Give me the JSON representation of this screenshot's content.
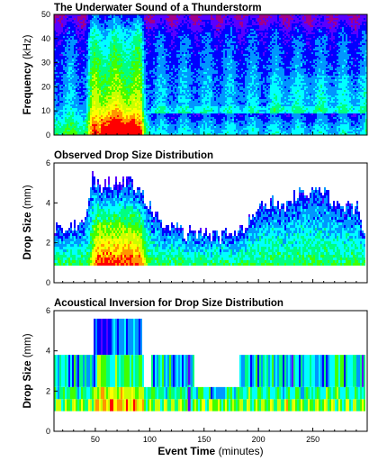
{
  "chart_data": [
    {
      "type": "heatmap",
      "title": "The Underwater Sound of a Thunderstorm",
      "ylabel": "Frequency",
      "yunit": "(kHz)",
      "xlim": [
        12,
        300
      ],
      "ylim": [
        0,
        50
      ],
      "yticks": [
        "0",
        "10",
        "20",
        "30",
        "40",
        "50"
      ],
      "xticks": [
        "",
        "",
        "",
        "",
        "",
        ""
      ],
      "events": [
        {
          "kind": "intense_rain",
          "x": [
            45,
            92
          ]
        },
        {
          "kind": "narrowband_lowfreq",
          "x": [
            100,
            300
          ],
          "y": [
            0,
            10
          ]
        }
      ]
    },
    {
      "type": "heatmap",
      "title": "Observed Drop Size Distribution",
      "ylabel": "Drop Size",
      "yunit": "(mm)",
      "xlim": [
        12,
        300
      ],
      "ylim": [
        0,
        6
      ],
      "yticks": [
        "0",
        "2",
        "4",
        "6"
      ],
      "xticks": [
        "",
        "",
        "",
        "",
        "",
        ""
      ],
      "upper_drop_size_envelope_mm": [
        [
          15,
          2.8
        ],
        [
          30,
          3.0
        ],
        [
          40,
          3.4
        ],
        [
          47,
          5.4
        ],
        [
          55,
          5.0
        ],
        [
          70,
          5.2
        ],
        [
          85,
          5.0
        ],
        [
          95,
          4.2
        ],
        [
          110,
          3.2
        ],
        [
          130,
          2.6
        ],
        [
          160,
          2.4
        ],
        [
          180,
          2.6
        ],
        [
          195,
          3.6
        ],
        [
          210,
          4.2
        ],
        [
          220,
          3.8
        ],
        [
          230,
          4.4
        ],
        [
          250,
          4.6
        ],
        [
          270,
          4.2
        ],
        [
          290,
          3.8
        ],
        [
          297,
          2.5
        ]
      ]
    },
    {
      "type": "heatmap",
      "title": "Acoustical Inversion for Drop Size Distribution",
      "ylabel": "Drop Size",
      "yunit": "(mm)",
      "xlabel": "Event Time",
      "xunit": "(minutes)",
      "xlim": [
        12,
        300
      ],
      "ylim": [
        0,
        6
      ],
      "yticks": [
        "0",
        "2",
        "4",
        "6"
      ],
      "xticks": [
        "50",
        "100",
        "150",
        "200",
        "250"
      ],
      "xtick_values": [
        50,
        100,
        150,
        200,
        250
      ],
      "bands_mm": [
        [
          1.0,
          1.6
        ],
        [
          1.6,
          2.2
        ],
        [
          2.2,
          3.8
        ],
        [
          3.8,
          5.6
        ]
      ]
    }
  ],
  "colormap": [
    "#a0008c",
    "#5a00ff",
    "#0000ff",
    "#0096ff",
    "#00ffff",
    "#00ff80",
    "#40ff00",
    "#c8ff00",
    "#ffff00",
    "#ff9600",
    "#ff0000"
  ]
}
